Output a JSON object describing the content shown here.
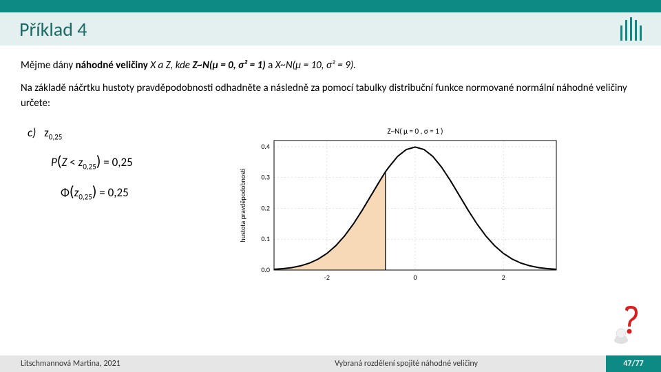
{
  "header": {
    "title": "Příklad 4",
    "logo_bars": [
      22,
      30,
      34,
      30,
      22
    ],
    "logo_color": "#0d8a84",
    "top_bar_color": "#0d8a84",
    "title_bg": "#e4f0ef",
    "title_color": "#1a6b66"
  },
  "intro": {
    "pre": "Mějme dány ",
    "bold1": "náhodné veličiny ",
    "xzpart": "X a Z, kde ",
    "dist1_a": "Z~N",
    "dist1_b": "(μ = 0, σ² = 1)",
    "mid": " a ",
    "dist2": "X~N(μ = 10, σ² = 9).",
    "line2": "Na základě náčrtku hustoty pravděpodobnosti odhadněte a následně za pomocí tabulky distribuční funkce normované normální náhodné veličiny určete:"
  },
  "formulas": {
    "label": "c)",
    "z": "z",
    "zsub": "0,25",
    "p_lhs_a": "P",
    "p_lhs_b": "(Z < z",
    "p_lhs_c": ") = 0,25",
    "phi_a": "Φ",
    "phi_b": "(z",
    "phi_c": ") = 0,25"
  },
  "chart": {
    "title": "Z~N( μ = 0 ,  σ = 1 )",
    "title_fontsize": 11,
    "ylabel": "hustota pravděpodobnosti",
    "ylabel_fontsize": 10,
    "xlim": [
      -3.2,
      3.2
    ],
    "ylim": [
      0.0,
      0.42
    ],
    "xticks": [
      -2,
      0,
      2
    ],
    "yticks": [
      0.0,
      0.1,
      0.2,
      0.3,
      0.4
    ],
    "line_color": "#000000",
    "line_width": 2,
    "fill_color": "#f7d9b8",
    "fill_border": "#b0824a",
    "grid_color": "#c8c8c8",
    "bg": "#ffffff",
    "fill_x_from": -3.2,
    "fill_x_to": -0.674,
    "curve": [
      [
        -3.2,
        0.0024
      ],
      [
        -3.0,
        0.0044
      ],
      [
        -2.8,
        0.0079
      ],
      [
        -2.6,
        0.0136
      ],
      [
        -2.4,
        0.0224
      ],
      [
        -2.2,
        0.0355
      ],
      [
        -2.0,
        0.054
      ],
      [
        -1.8,
        0.079
      ],
      [
        -1.6,
        0.1109
      ],
      [
        -1.4,
        0.1497
      ],
      [
        -1.2,
        0.1942
      ],
      [
        -1.0,
        0.242
      ],
      [
        -0.8,
        0.2897
      ],
      [
        -0.674,
        0.3187
      ],
      [
        -0.6,
        0.3332
      ],
      [
        -0.4,
        0.3683
      ],
      [
        -0.2,
        0.391
      ],
      [
        0.0,
        0.3989
      ],
      [
        0.2,
        0.391
      ],
      [
        0.4,
        0.3683
      ],
      [
        0.6,
        0.3332
      ],
      [
        0.8,
        0.2897
      ],
      [
        1.0,
        0.242
      ],
      [
        1.2,
        0.1942
      ],
      [
        1.4,
        0.1497
      ],
      [
        1.6,
        0.1109
      ],
      [
        1.8,
        0.079
      ],
      [
        2.0,
        0.054
      ],
      [
        2.2,
        0.0355
      ],
      [
        2.4,
        0.0224
      ],
      [
        2.6,
        0.0136
      ],
      [
        2.8,
        0.0079
      ],
      [
        3.0,
        0.0044
      ],
      [
        3.2,
        0.0024
      ]
    ]
  },
  "footer": {
    "left": "Litschmannová Martina, 2021",
    "mid": "Vybraná rozdělení spojité náhodné veličiny",
    "page_current": "47",
    "page_sep": " / ",
    "page_total": "77"
  },
  "qmark": {
    "color": "#d91e1e",
    "body_color": "#e0e0e0"
  }
}
